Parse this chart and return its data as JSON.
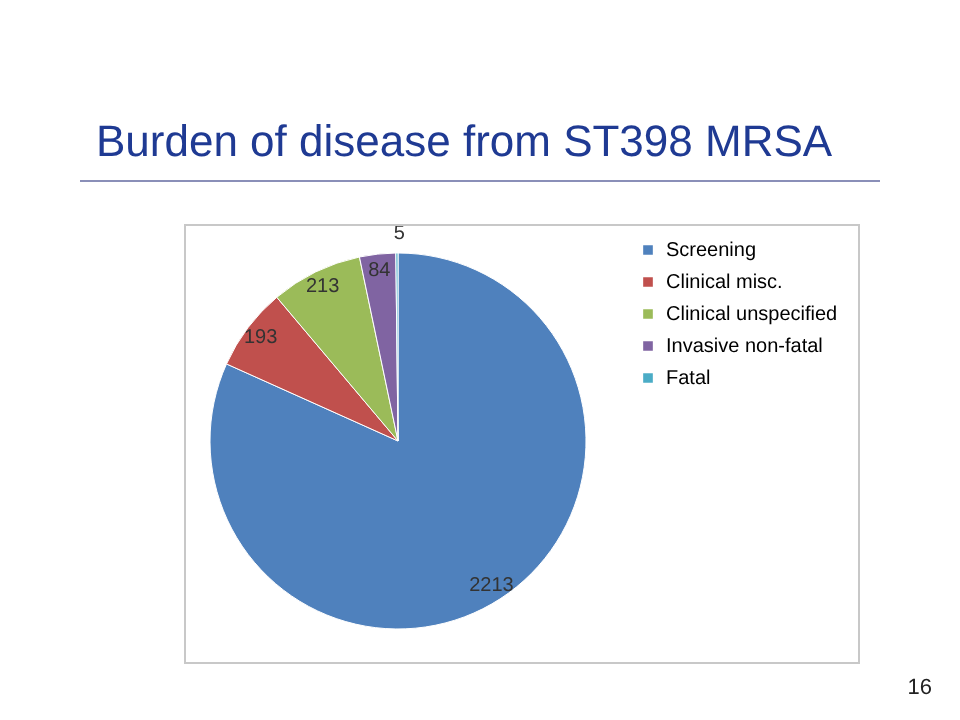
{
  "chart_data": {
    "type": "pie",
    "title": "Burden of disease from ST398 MRSA",
    "categories": [
      "Screening",
      "Clinical misc.",
      "Clinical unspecified",
      "Invasive non-fatal",
      "Fatal"
    ],
    "values": [
      2213,
      193,
      213,
      84,
      5
    ],
    "colors": [
      "#4f81bd",
      "#c0504d",
      "#9bbb59",
      "#8064a2",
      "#4bacc6"
    ],
    "data_labels": true,
    "legend": "right",
    "annotations": [
      "16"
    ]
  }
}
